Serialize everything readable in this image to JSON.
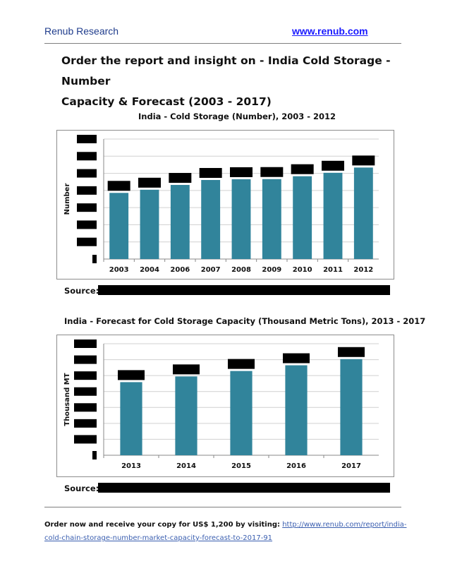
{
  "header": {
    "brand": "Renub Research",
    "website": "www.renub.com"
  },
  "title": {
    "line1": "Order the report and insight on - India Cold Storage - Number",
    "line2": "Capacity & Forecast (2003 - 2017)"
  },
  "chart1": {
    "title": "India - Cold Storage (Number), 2003 - 2012",
    "source_label": "Source:"
  },
  "chart2": {
    "title": "India - Forecast for Cold Storage Capacity (Thousand Metric Tons), 2013 - 2017",
    "source_label": "Source:"
  },
  "chart_data": [
    {
      "type": "bar",
      "title": "India - Cold Storage (Number), 2003 - 2012",
      "ylabel": "Number",
      "xlabel": "",
      "categories": [
        "2003",
        "2004",
        "2006",
        "2007",
        "2008",
        "2009",
        "2010",
        "2011",
        "2012"
      ],
      "values": [
        4410,
        4620,
        4940,
        5270,
        5320,
        5330,
        5520,
        5750,
        6100
      ],
      "ylim": [
        0,
        8000
      ],
      "bar_color": "#31849b",
      "grid": true,
      "data_labels_redacted": true,
      "y_tick_labels_redacted": true
    },
    {
      "type": "bar",
      "title": "India - Forecast for Cold Storage Capacity (Thousand Metric Tons), 2013 - 2017",
      "ylabel": "Thousand MT",
      "xlabel": "",
      "categories": [
        "2013",
        "2014",
        "2015",
        "2016",
        "2017"
      ],
      "values": [
        29500,
        31800,
        34000,
        36300,
        38800
      ],
      "ylim": [
        0,
        45000
      ],
      "bar_color": "#31849b",
      "grid": true,
      "data_labels_redacted": true,
      "y_tick_labels_redacted": true
    }
  ],
  "footer": {
    "text": "Order now and receive your copy for US$ 1,200 by visiting:",
    "link_part1": "http://www.renub.com/report/india-",
    "link_part2": "cold-chain-storage-number-market-capacity-forecast-to-2017-91"
  }
}
